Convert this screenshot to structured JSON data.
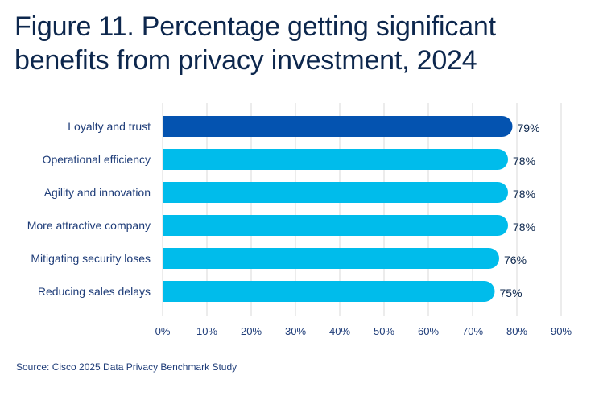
{
  "title_line1": "Figure 11. Percentage getting significant",
  "title_line2": "benefits from privacy investment, 2024",
  "source": "Source: Cisco 2025 Data Privacy Benchmark Study",
  "colors": {
    "highlight": "#0453b0",
    "bar": "#00bceb",
    "grid": "#d8d8d8",
    "text": "#1e3c78"
  },
  "chart_data": {
    "type": "bar",
    "orientation": "horizontal",
    "categories": [
      "Loyalty and trust",
      "Operational efficiency",
      "Agility and innovation",
      "More attractive company",
      "Mitigating security loses",
      "Reducing sales delays"
    ],
    "values": [
      79,
      78,
      78,
      78,
      76,
      75
    ],
    "data_labels": [
      "79%",
      "78%",
      "78%",
      "78%",
      "76%",
      "75%"
    ],
    "highlight_index": 0,
    "xlim": [
      0,
      90
    ],
    "xticks": [
      "0%",
      "10%",
      "20%",
      "30%",
      "40%",
      "50%",
      "60%",
      "70%",
      "80%",
      "90%"
    ],
    "grid": true,
    "legend": "none"
  }
}
